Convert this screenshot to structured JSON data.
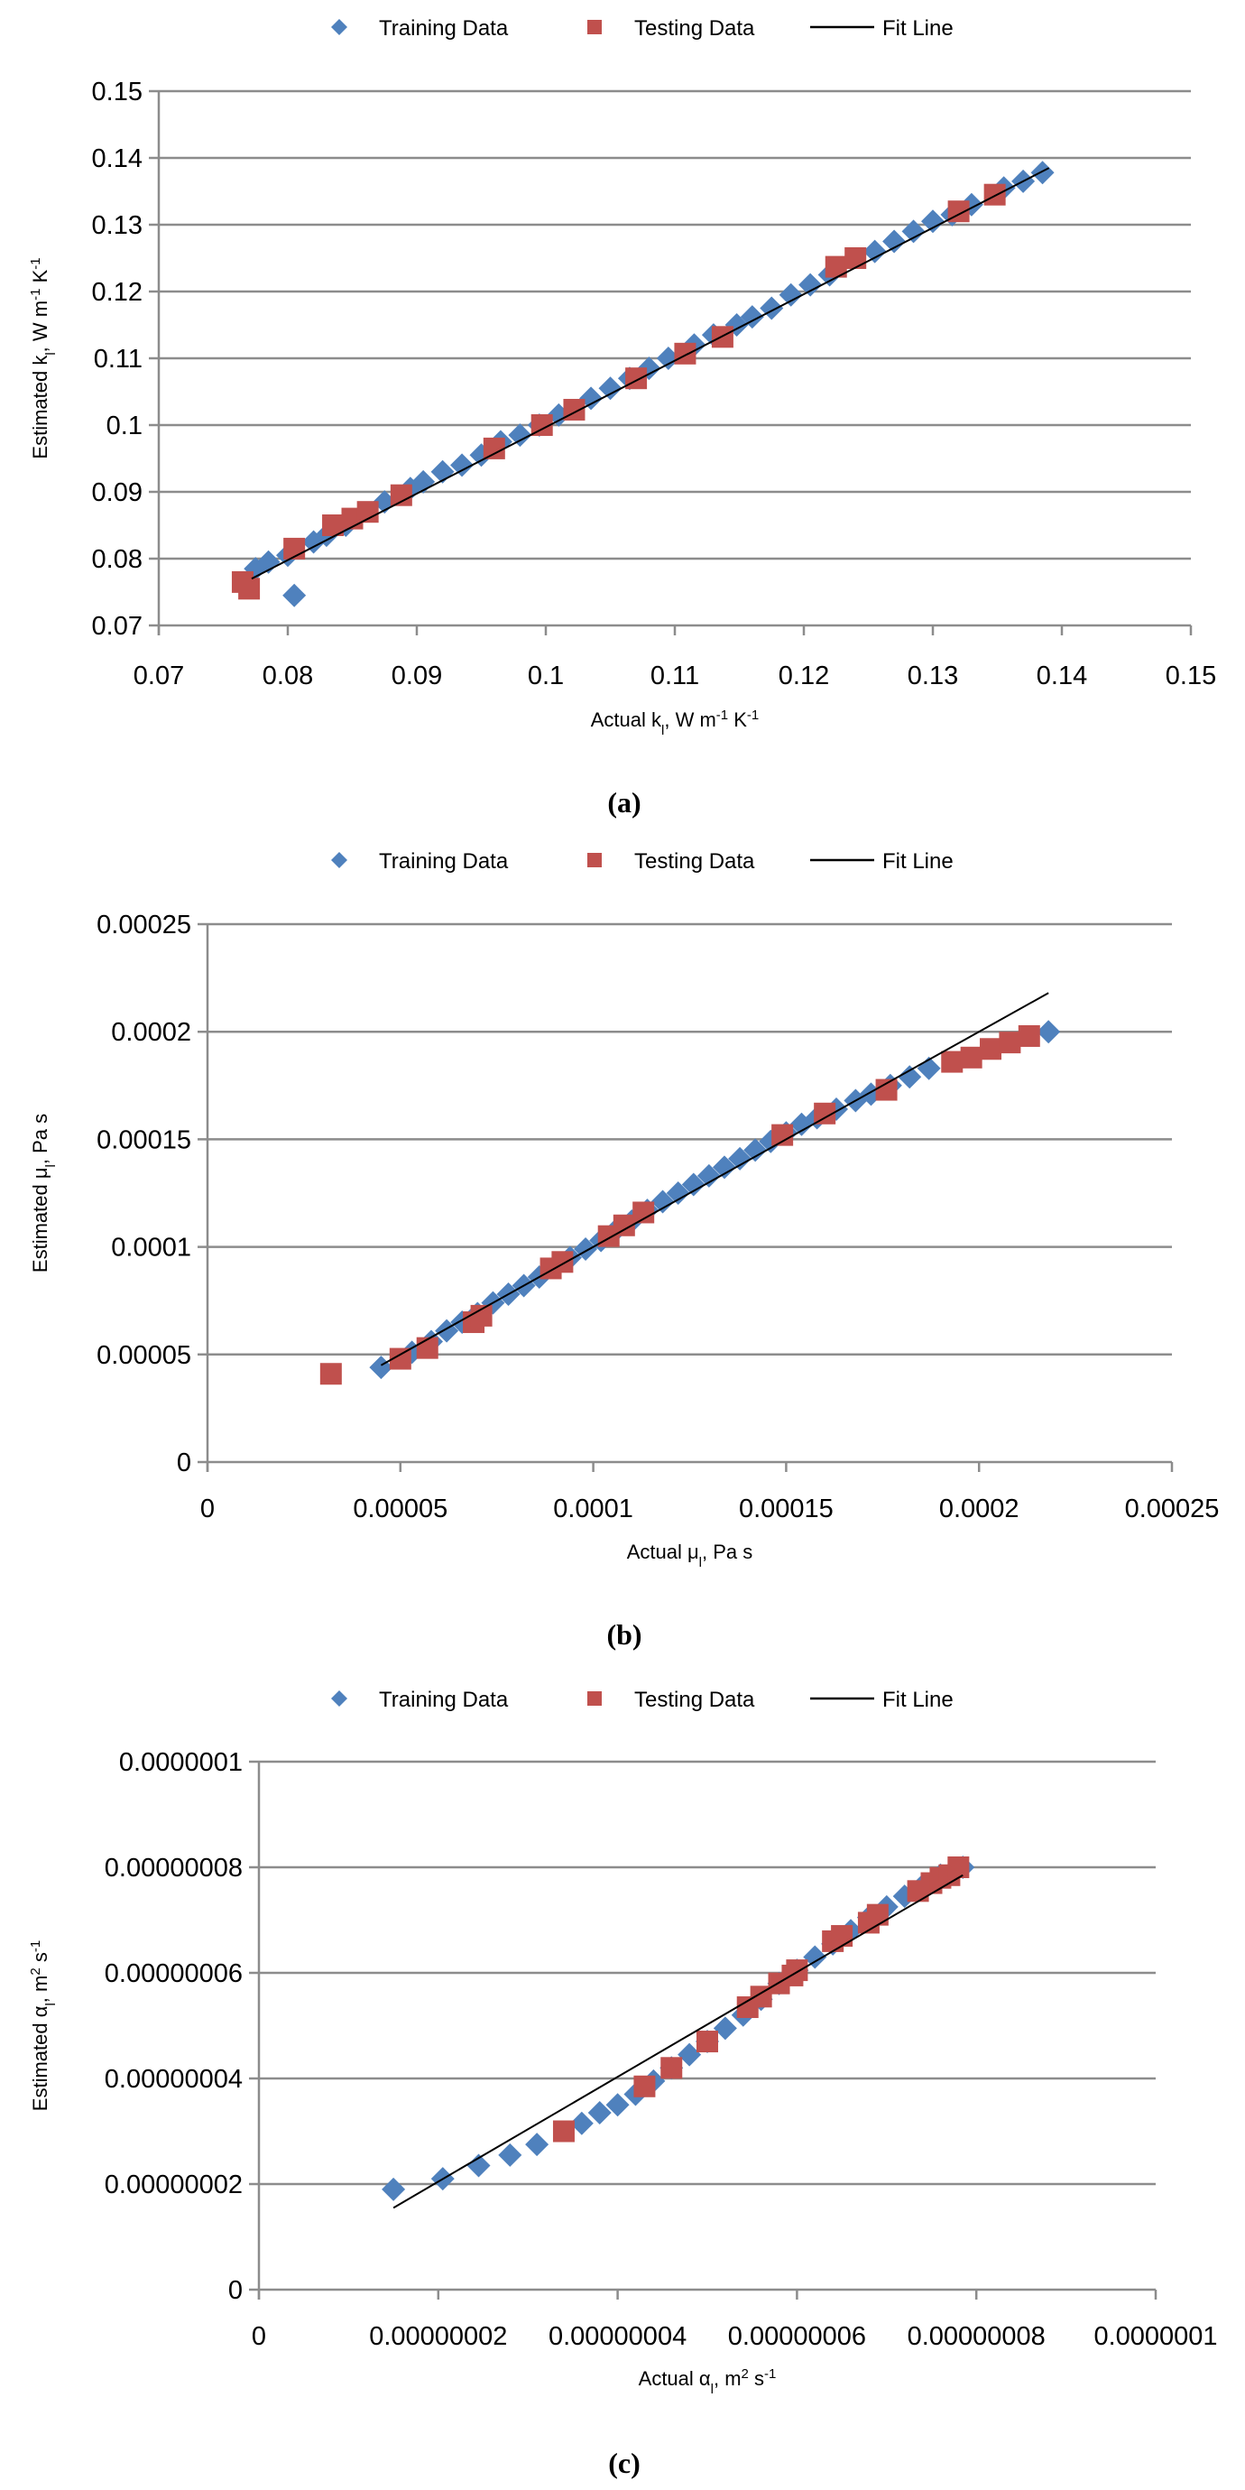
{
  "colors": {
    "training": "#4f81bd",
    "testing": "#c0504d",
    "fit": "#000000",
    "grid": "#8c8c8c"
  },
  "legend": {
    "training": "Training Data",
    "testing": "Testing Data",
    "fit": "Fit Line"
  },
  "chart_data": [
    {
      "id": "a",
      "type": "scatter",
      "caption": "(a)",
      "xlabel": [
        {
          "t": "Actual k"
        },
        {
          "t": "l",
          "s": "sub"
        },
        {
          "t": ", W m"
        },
        {
          "t": "-1",
          "s": "sup"
        },
        {
          "t": " K"
        },
        {
          "t": "-1",
          "s": "sup"
        }
      ],
      "ylabel": [
        {
          "t": "Estimated k"
        },
        {
          "t": "l",
          "s": "sub"
        },
        {
          "t": ", W m"
        },
        {
          "t": "-1",
          "s": "sup"
        },
        {
          "t": " K"
        },
        {
          "t": "-1",
          "s": "sup"
        }
      ],
      "xlim": [
        0.07,
        0.15
      ],
      "ylim": [
        0.07,
        0.15
      ],
      "xticks": [
        "0.07",
        "0.08",
        "0.09",
        "0.1",
        "0.11",
        "0.12",
        "0.13",
        "0.14",
        "0.15"
      ],
      "yticks": [
        "0.07",
        "0.08",
        "0.09",
        "0.1",
        "0.11",
        "0.12",
        "0.13",
        "0.14",
        "0.15"
      ],
      "grid": "horizontal",
      "legend_position": "top-center",
      "series": [
        {
          "name": "Training Data",
          "marker": "diamond",
          "points": [
            [
              0.0775,
              0.0785
            ],
            [
              0.0785,
              0.0795
            ],
            [
              0.08,
              0.0805
            ],
            [
              0.082,
              0.0825
            ],
            [
              0.083,
              0.0835
            ],
            [
              0.0845,
              0.085
            ],
            [
              0.0875,
              0.0885
            ],
            [
              0.0895,
              0.0905
            ],
            [
              0.0905,
              0.0915
            ],
            [
              0.092,
              0.093
            ],
            [
              0.0935,
              0.094
            ],
            [
              0.095,
              0.0955
            ],
            [
              0.0965,
              0.0975
            ],
            [
              0.098,
              0.0985
            ],
            [
              0.0995,
              0.1
            ],
            [
              0.101,
              0.1015
            ],
            [
              0.1035,
              0.104
            ],
            [
              0.105,
              0.1055
            ],
            [
              0.1065,
              0.107
            ],
            [
              0.108,
              0.1085
            ],
            [
              0.1095,
              0.11
            ],
            [
              0.1115,
              0.112
            ],
            [
              0.113,
              0.1135
            ],
            [
              0.1148,
              0.115
            ],
            [
              0.116,
              0.1162
            ],
            [
              0.1175,
              0.1175
            ],
            [
              0.119,
              0.1195
            ],
            [
              0.1205,
              0.121
            ],
            [
              0.122,
              0.1225
            ],
            [
              0.1255,
              0.126
            ],
            [
              0.127,
              0.1275
            ],
            [
              0.1285,
              0.129
            ],
            [
              0.13,
              0.1305
            ],
            [
              0.1315,
              0.1315
            ],
            [
              0.133,
              0.133
            ],
            [
              0.1355,
              0.1355
            ],
            [
              0.137,
              0.1365
            ],
            [
              0.1385,
              0.1378
            ],
            [
              0.0805,
              0.0745
            ]
          ]
        },
        {
          "name": "Testing Data",
          "marker": "square",
          "points": [
            [
              0.0765,
              0.0765
            ],
            [
              0.077,
              0.0755
            ],
            [
              0.0805,
              0.0815
            ],
            [
              0.0835,
              0.085
            ],
            [
              0.085,
              0.086
            ],
            [
              0.0862,
              0.087
            ],
            [
              0.0888,
              0.0895
            ],
            [
              0.096,
              0.0965
            ],
            [
              0.0997,
              0.1
            ],
            [
              0.1022,
              0.1023
            ],
            [
              0.107,
              0.107
            ],
            [
              0.1108,
              0.1107
            ],
            [
              0.1137,
              0.1132
            ],
            [
              0.1225,
              0.1237
            ],
            [
              0.124,
              0.125
            ],
            [
              0.132,
              0.132
            ],
            [
              0.1348,
              0.1345
            ]
          ]
        },
        {
          "name": "Fit Line",
          "marker": "line",
          "points": [
            [
              0.0772,
              0.077
            ],
            [
              0.139,
              0.1385
            ]
          ]
        }
      ]
    },
    {
      "id": "b",
      "type": "scatter",
      "caption": "(b)",
      "xlabel": [
        {
          "t": "Actual μ"
        },
        {
          "t": "l",
          "s": "sub"
        },
        {
          "t": ", Pa s"
        }
      ],
      "ylabel": [
        {
          "t": "Estimated μ"
        },
        {
          "t": "l",
          "s": "sub"
        },
        {
          "t": ", Pa s"
        }
      ],
      "xlim": [
        0,
        0.00025
      ],
      "ylim": [
        0,
        0.00025
      ],
      "xticks": [
        "0",
        "0.00005",
        "0.0001",
        "0.00015",
        "0.0002",
        "0.00025"
      ],
      "yticks": [
        "0",
        "0.00005",
        "0.0001",
        "0.00015",
        "0.0002",
        "0.00025"
      ],
      "grid": "horizontal",
      "legend_position": "top-center",
      "series": [
        {
          "name": "Training Data",
          "marker": "diamond",
          "points": [
            [
              4.5e-05,
              4.4e-05
            ],
            [
              5.3e-05,
              5.1e-05
            ],
            [
              5.8e-05,
              5.6e-05
            ],
            [
              6.2e-05,
              6.1e-05
            ],
            [
              6.6e-05,
              6.5e-05
            ],
            [
              7e-05,
              6.9e-05
            ],
            [
              7.4e-05,
              7.4e-05
            ],
            [
              7.8e-05,
              7.8e-05
            ],
            [
              8.2e-05,
              8.2e-05
            ],
            [
              8.6e-05,
              8.6e-05
            ],
            [
              9e-05,
              9.1e-05
            ],
            [
              9.4e-05,
              9.5e-05
            ],
            [
              9.8e-05,
              9.9e-05
            ],
            [
              0.000102,
              0.000103
            ],
            [
              0.000106,
              0.000108
            ],
            [
              0.00011,
              0.000112
            ],
            [
              0.000114,
              0.000117
            ],
            [
              0.000118,
              0.000121
            ],
            [
              0.000122,
              0.000125
            ],
            [
              0.000126,
              0.000129
            ],
            [
              0.00013,
              0.000133
            ],
            [
              0.000134,
              0.000137
            ],
            [
              0.000138,
              0.000141
            ],
            [
              0.000142,
              0.000145
            ],
            [
              0.000146,
              0.000149
            ],
            [
              0.00015,
              0.000153
            ],
            [
              0.000154,
              0.000157
            ],
            [
              0.000158,
              0.00016
            ],
            [
              0.000163,
              0.000164
            ],
            [
              0.000168,
              0.000168
            ],
            [
              0.000172,
              0.000171
            ],
            [
              0.000177,
              0.000175
            ],
            [
              0.000182,
              0.000179
            ],
            [
              0.000187,
              0.000183
            ],
            [
              0.000218,
              0.0002
            ]
          ]
        },
        {
          "name": "Testing Data",
          "marker": "square",
          "points": [
            [
              3.2e-05,
              4.1e-05
            ],
            [
              5e-05,
              4.8e-05
            ],
            [
              5.7e-05,
              5.3e-05
            ],
            [
              6.9e-05,
              6.5e-05
            ],
            [
              7.1e-05,
              6.8e-05
            ],
            [
              8.9e-05,
              9e-05
            ],
            [
              9.2e-05,
              9.3e-05
            ],
            [
              0.000104,
              0.000105
            ],
            [
              0.000108,
              0.00011
            ],
            [
              0.000113,
              0.000116
            ],
            [
              0.000149,
              0.000152
            ],
            [
              0.00016,
              0.000162
            ],
            [
              0.000176,
              0.000173
            ],
            [
              0.000193,
              0.000186
            ],
            [
              0.000198,
              0.000188
            ],
            [
              0.000203,
              0.000192
            ],
            [
              0.000208,
              0.000195
            ],
            [
              0.000213,
              0.000198
            ]
          ]
        },
        {
          "name": "Fit Line",
          "marker": "line",
          "points": [
            [
              4.5e-05,
              4.5e-05
            ],
            [
              0.000218,
              0.000218
            ]
          ]
        }
      ]
    },
    {
      "id": "c",
      "type": "scatter",
      "caption": "(c)",
      "xlabel": [
        {
          "t": "Actual α"
        },
        {
          "t": "l",
          "s": "sub"
        },
        {
          "t": ", m"
        },
        {
          "t": "2",
          "s": "sup"
        },
        {
          "t": " s"
        },
        {
          "t": "-1",
          "s": "sup"
        }
      ],
      "ylabel": [
        {
          "t": "Estimated α"
        },
        {
          "t": "l",
          "s": "sub"
        },
        {
          "t": ", m"
        },
        {
          "t": "2",
          "s": "sup"
        },
        {
          "t": " s"
        },
        {
          "t": "-1",
          "s": "sup"
        }
      ],
      "xlim": [
        0,
        1e-07
      ],
      "ylim": [
        0,
        1e-07
      ],
      "xticks": [
        "0",
        "0.00000002",
        "0.00000004",
        "0.00000006",
        "0.00000008",
        "0.0000001"
      ],
      "yticks": [
        "0",
        "0.00000002",
        "0.00000004",
        "0.00000006",
        "0.00000008",
        "0.0000001"
      ],
      "grid": "horizontal",
      "legend_position": "top-center",
      "series": [
        {
          "name": "Training Data",
          "marker": "diamond",
          "points": [
            [
              1.5e-08,
              1.9e-08
            ],
            [
              2.05e-08,
              2.1e-08
            ],
            [
              2.45e-08,
              2.35e-08
            ],
            [
              2.8e-08,
              2.55e-08
            ],
            [
              3.1e-08,
              2.75e-08
            ],
            [
              3.6e-08,
              3.15e-08
            ],
            [
              3.8e-08,
              3.35e-08
            ],
            [
              4e-08,
              3.5e-08
            ],
            [
              4.2e-08,
              3.7e-08
            ],
            [
              4.4e-08,
              3.95e-08
            ],
            [
              4.6e-08,
              4.2e-08
            ],
            [
              4.8e-08,
              4.45e-08
            ],
            [
              5e-08,
              4.7e-08
            ],
            [
              5.2e-08,
              4.95e-08
            ],
            [
              5.4e-08,
              5.2e-08
            ],
            [
              5.6e-08,
              5.5e-08
            ],
            [
              5.8e-08,
              5.8e-08
            ],
            [
              6e-08,
              6.05e-08
            ],
            [
              6.2e-08,
              6.3e-08
            ],
            [
              6.4e-08,
              6.55e-08
            ],
            [
              6.6e-08,
              6.8e-08
            ],
            [
              6.8e-08,
              7.05e-08
            ],
            [
              7e-08,
              7.25e-08
            ],
            [
              7.2e-08,
              7.45e-08
            ],
            [
              7.4e-08,
              7.65e-08
            ],
            [
              7.6e-08,
              7.85e-08
            ],
            [
              7.85e-08,
              8e-08
            ]
          ]
        },
        {
          "name": "Testing Data",
          "marker": "square",
          "points": [
            [
              3.4e-08,
              3e-08
            ],
            [
              4.3e-08,
              3.85e-08
            ],
            [
              4.6e-08,
              4.2e-08
            ],
            [
              5e-08,
              4.7e-08
            ],
            [
              5.45e-08,
              5.35e-08
            ],
            [
              5.6e-08,
              5.55e-08
            ],
            [
              5.8e-08,
              5.8e-08
            ],
            [
              5.95e-08,
              5.95e-08
            ],
            [
              6e-08,
              6.05e-08
            ],
            [
              6.4e-08,
              6.6e-08
            ],
            [
              6.5e-08,
              6.7e-08
            ],
            [
              6.8e-08,
              6.95e-08
            ],
            [
              6.9e-08,
              7.1e-08
            ],
            [
              7.35e-08,
              7.55e-08
            ],
            [
              7.5e-08,
              7.7e-08
            ],
            [
              7.6e-08,
              7.8e-08
            ],
            [
              7.7e-08,
              7.85e-08
            ],
            [
              7.8e-08,
              8e-08
            ]
          ]
        },
        {
          "name": "Fit Line",
          "marker": "line",
          "points": [
            [
              1.5e-08,
              1.55e-08
            ],
            [
              7.85e-08,
              7.85e-08
            ]
          ]
        }
      ]
    }
  ]
}
